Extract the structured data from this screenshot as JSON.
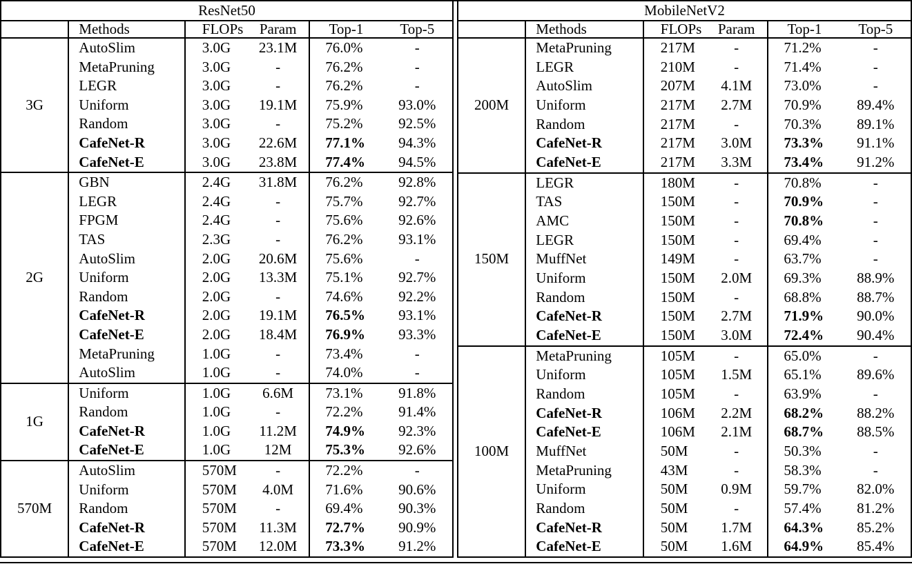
{
  "page": {
    "background_color": "#ffffff",
    "text_color": "#000000",
    "rule_color": "#000000"
  },
  "tables": [
    {
      "title": "ResNet50",
      "headers": {
        "group": "",
        "methods": "Methods",
        "flops": "FLOPs",
        "param": "Param",
        "top1": "Top-1",
        "top5": "Top-5"
      },
      "groups": [
        {
          "label": "3G",
          "rows": [
            {
              "method": "AutoSlim",
              "flops": "3.0G",
              "param": "23.1M",
              "top1": "76.0%",
              "top5": "-"
            },
            {
              "method": "MetaPruning",
              "flops": "3.0G",
              "param": "-",
              "top1": "76.2%",
              "top5": "-"
            },
            {
              "method": "LEGR",
              "flops": "3.0G",
              "param": "-",
              "top1": "76.2%",
              "top5": "-"
            },
            {
              "method": "Uniform",
              "flops": "3.0G",
              "param": "19.1M",
              "top1": "75.9%",
              "top5": "93.0%"
            },
            {
              "method": "Random",
              "flops": "3.0G",
              "param": "-",
              "top1": "75.2%",
              "top5": "92.5%"
            },
            {
              "method": "CafeNet-R",
              "flops": "3.0G",
              "param": "22.6M",
              "top1": "77.1%",
              "top5": "94.3%",
              "bold_method": true,
              "bold_top1": true
            },
            {
              "method": "CafeNet-E",
              "flops": "3.0G",
              "param": "23.8M",
              "top1": "77.4%",
              "top5": "94.5%",
              "bold_method": true,
              "bold_top1": true
            }
          ]
        },
        {
          "label": "2G",
          "rows": [
            {
              "method": "GBN",
              "flops": "2.4G",
              "param": "31.8M",
              "top1": "76.2%",
              "top5": "92.8%"
            },
            {
              "method": "LEGR",
              "flops": "2.4G",
              "param": "-",
              "top1": "75.7%",
              "top5": "92.7%"
            },
            {
              "method": "FPGM",
              "flops": "2.4G",
              "param": "-",
              "top1": "75.6%",
              "top5": "92.6%"
            },
            {
              "method": "TAS",
              "flops": "2.3G",
              "param": "-",
              "top1": "76.2%",
              "top5": "93.1%"
            },
            {
              "method": "AutoSlim",
              "flops": "2.0G",
              "param": "20.6M",
              "top1": "75.6%",
              "top5": "-"
            },
            {
              "method": "Uniform",
              "flops": "2.0G",
              "param": "13.3M",
              "top1": "75.1%",
              "top5": "92.7%"
            },
            {
              "method": "Random",
              "flops": "2.0G",
              "param": "-",
              "top1": "74.6%",
              "top5": "92.2%"
            },
            {
              "method": "CafeNet-R",
              "flops": "2.0G",
              "param": "19.1M",
              "top1": "76.5%",
              "top5": "93.1%",
              "bold_method": true,
              "bold_top1": true
            },
            {
              "method": "CafeNet-E",
              "flops": "2.0G",
              "param": "18.4M",
              "top1": "76.9%",
              "top5": "93.3%",
              "bold_method": true,
              "bold_top1": true
            },
            {
              "method": "MetaPruning",
              "flops": "1.0G",
              "param": "-",
              "top1": "73.4%",
              "top5": "-"
            },
            {
              "method": "AutoSlim",
              "flops": "1.0G",
              "param": "-",
              "top1": "74.0%",
              "top5": "-"
            }
          ]
        },
        {
          "label": "1G",
          "rows": [
            {
              "method": "Uniform",
              "flops": "1.0G",
              "param": "6.6M",
              "top1": "73.1%",
              "top5": "91.8%"
            },
            {
              "method": "Random",
              "flops": "1.0G",
              "param": "-",
              "top1": "72.2%",
              "top5": "91.4%"
            },
            {
              "method": "CafeNet-R",
              "flops": "1.0G",
              "param": "11.2M",
              "top1": "74.9%",
              "top5": "92.3%",
              "bold_method": true,
              "bold_top1": true
            },
            {
              "method": "CafeNet-E",
              "flops": "1.0G",
              "param": "12M",
              "top1": "75.3%",
              "top5": "92.6%",
              "bold_method": true,
              "bold_top1": true
            }
          ]
        },
        {
          "label": "570M",
          "rows": [
            {
              "method": "AutoSlim",
              "flops": "570M",
              "param": "-",
              "top1": "72.2%",
              "top5": "-"
            },
            {
              "method": "Uniform",
              "flops": "570M",
              "param": "4.0M",
              "top1": "71.6%",
              "top5": "90.6%"
            },
            {
              "method": "Random",
              "flops": "570M",
              "param": "-",
              "top1": "69.4%",
              "top5": "90.3%"
            },
            {
              "method": "CafeNet-R",
              "flops": "570M",
              "param": "11.3M",
              "top1": "72.7%",
              "top5": "90.9%",
              "bold_method": true,
              "bold_top1": true
            },
            {
              "method": "CafeNet-E",
              "flops": "570M",
              "param": "12.0M",
              "top1": "73.3%",
              "top5": "91.2%",
              "bold_method": true,
              "bold_top1": true
            }
          ]
        }
      ]
    },
    {
      "title": "MobileNetV2",
      "headers": {
        "group": "",
        "methods": "Methods",
        "flops": "FLOPs",
        "param": "Param",
        "top1": "Top-1",
        "top5": "Top-5"
      },
      "groups": [
        {
          "label": "200M",
          "rows": [
            {
              "method": "MetaPruning",
              "flops": "217M",
              "param": "-",
              "top1": "71.2%",
              "top5": "-"
            },
            {
              "method": "LEGR",
              "flops": "210M",
              "param": "-",
              "top1": "71.4%",
              "top5": "-"
            },
            {
              "method": "AutoSlim",
              "flops": "207M",
              "param": "4.1M",
              "top1": "73.0%",
              "top5": "-"
            },
            {
              "method": "Uniform",
              "flops": "217M",
              "param": "2.7M",
              "top1": "70.9%",
              "top5": "89.4%"
            },
            {
              "method": "Random",
              "flops": "217M",
              "param": "-",
              "top1": "70.3%",
              "top5": "89.1%"
            },
            {
              "method": "CafeNet-R",
              "flops": "217M",
              "param": "3.0M",
              "top1": "73.3%",
              "top5": "91.1%",
              "bold_method": true,
              "bold_top1": true
            },
            {
              "method": "CafeNet-E",
              "flops": "217M",
              "param": "3.3M",
              "top1": "73.4%",
              "top5": "91.2%",
              "bold_method": true,
              "bold_top1": true
            }
          ]
        },
        {
          "label": "150M",
          "rows": [
            {
              "method": "LEGR",
              "flops": "180M",
              "param": "-",
              "top1": "70.8%",
              "top5": "-"
            },
            {
              "method": "TAS",
              "flops": "150M",
              "param": "-",
              "top1": "70.9%",
              "top5": "-",
              "bold_top1": true
            },
            {
              "method": "AMC",
              "flops": "150M",
              "param": "-",
              "top1": "70.8%",
              "top5": "-",
              "bold_top1": true
            },
            {
              "method": "LEGR",
              "flops": "150M",
              "param": "-",
              "top1": "69.4%",
              "top5": "-"
            },
            {
              "method": "MuffNet",
              "flops": "149M",
              "param": "-",
              "top1": "63.7%",
              "top5": "-"
            },
            {
              "method": "Uniform",
              "flops": "150M",
              "param": "2.0M",
              "top1": "69.3%",
              "top5": "88.9%"
            },
            {
              "method": "Random",
              "flops": "150M",
              "param": "-",
              "top1": "68.8%",
              "top5": "88.7%"
            },
            {
              "method": "CafeNet-R",
              "flops": "150M",
              "param": "2.7M",
              "top1": "71.9%",
              "top5": "90.0%",
              "bold_method": true,
              "bold_top1": true
            },
            {
              "method": "CafeNet-E",
              "flops": "150M",
              "param": "3.0M",
              "top1": "72.4%",
              "top5": "90.4%",
              "bold_method": true,
              "bold_top1": true
            }
          ]
        },
        {
          "label": "100M",
          "rows": [
            {
              "method": "MetaPruning",
              "flops": "105M",
              "param": "-",
              "top1": "65.0%",
              "top5": "-"
            },
            {
              "method": "Uniform",
              "flops": "105M",
              "param": "1.5M",
              "top1": "65.1%",
              "top5": "89.6%"
            },
            {
              "method": "Random",
              "flops": "105M",
              "param": "-",
              "top1": "63.9%",
              "top5": "-"
            },
            {
              "method": "CafeNet-R",
              "flops": "106M",
              "param": "2.2M",
              "top1": "68.2%",
              "top5": "88.2%",
              "bold_method": true,
              "bold_top1": true
            },
            {
              "method": "CafeNet-E",
              "flops": "106M",
              "param": "2.1M",
              "top1": "68.7%",
              "top5": "88.5%",
              "bold_method": true,
              "bold_top1": true
            },
            {
              "method": "MuffNet",
              "flops": "50M",
              "param": "-",
              "top1": "50.3%",
              "top5": "-"
            },
            {
              "method": "MetaPruning",
              "flops": "43M",
              "param": "-",
              "top1": "58.3%",
              "top5": "-"
            },
            {
              "method": "Uniform",
              "flops": "50M",
              "param": "0.9M",
              "top1": "59.7%",
              "top5": "82.0%"
            },
            {
              "method": "Random",
              "flops": "50M",
              "param": "-",
              "top1": "57.4%",
              "top5": "81.2%"
            },
            {
              "method": "CafeNet-R",
              "flops": "50M",
              "param": "1.7M",
              "top1": "64.3%",
              "top5": "85.2%",
              "bold_method": true,
              "bold_top1": true
            },
            {
              "method": "CafeNet-E",
              "flops": "50M",
              "param": "1.6M",
              "top1": "64.9%",
              "top5": "85.4%",
              "bold_method": true,
              "bold_top1": true
            }
          ]
        }
      ]
    }
  ]
}
